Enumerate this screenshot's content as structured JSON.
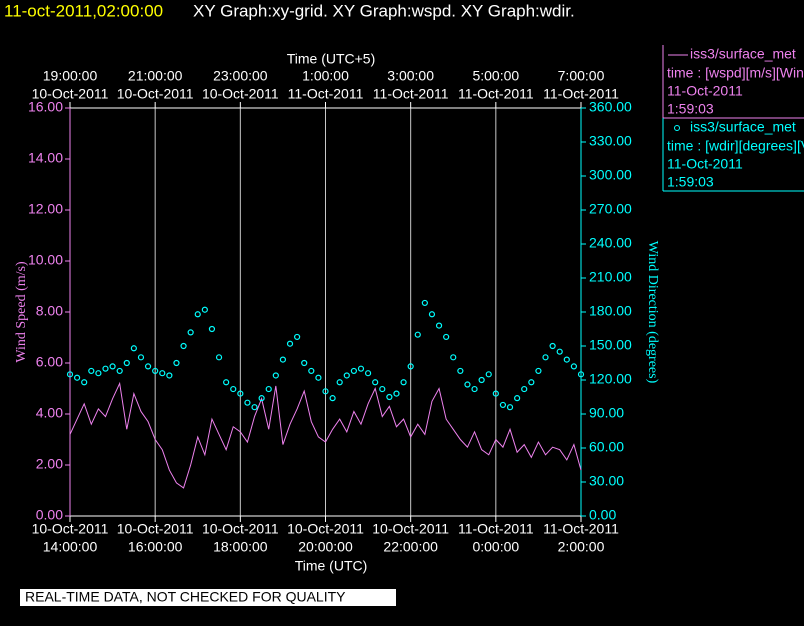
{
  "chart_data": {
    "type": "line",
    "title_time": "11-oct-2011,02:00:00",
    "title": "XY Graph:xy-grid.  XY Graph:wspd.  XY Graph:wdir.",
    "x2_label": "Time (UTC+5)",
    "x_label": "Time (UTC)",
    "y_label": "Wind Speed (m/s)",
    "y2_label": "Wind Direction (degrees)",
    "footer": "REAL-TIME DATA, NOT CHECKED FOR QUALITY",
    "grid": true,
    "xlim": [
      "2011-10-10 14:00",
      "2011-10-11 02:00"
    ],
    "xticks": [
      {
        "value": "2011-10-10 14:00",
        "date": "10-Oct-2011",
        "label": "14:00:00"
      },
      {
        "value": "2011-10-10 16:00",
        "date": "10-Oct-2011",
        "label": "16:00:00"
      },
      {
        "value": "2011-10-10 18:00",
        "date": "10-Oct-2011",
        "label": "18:00:00"
      },
      {
        "value": "2011-10-10 20:00",
        "date": "10-Oct-2011",
        "label": "20:00:00"
      },
      {
        "value": "2011-10-10 22:00",
        "date": "10-Oct-2011",
        "label": "22:00:00"
      },
      {
        "value": "2011-10-11 00:00",
        "date": "11-Oct-2011",
        "label": "0:00:00"
      },
      {
        "value": "2011-10-11 02:00",
        "date": "11-Oct-2011",
        "label": "2:00:00"
      }
    ],
    "x2ticks": [
      {
        "value": "2011-10-10 14:00",
        "date": "10-Oct-2011",
        "label": "19:00:00"
      },
      {
        "value": "2011-10-10 16:00",
        "date": "10-Oct-2011",
        "label": "21:00:00"
      },
      {
        "value": "2011-10-10 18:00",
        "date": "10-Oct-2011",
        "label": "23:00:00"
      },
      {
        "value": "2011-10-10 20:00",
        "date": "11-Oct-2011",
        "label": "1:00:00"
      },
      {
        "value": "2011-10-10 22:00",
        "date": "11-Oct-2011",
        "label": "3:00:00"
      },
      {
        "value": "2011-10-11 00:00",
        "date": "11-Oct-2011",
        "label": "5:00:00"
      },
      {
        "value": "2011-10-11 02:00",
        "date": "11-Oct-2011",
        "label": "7:00:00"
      }
    ],
    "ylim": [
      0,
      16
    ],
    "yticks": [
      {
        "value": 0,
        "label": "0.00"
      },
      {
        "value": 2,
        "label": "2.00"
      },
      {
        "value": 4,
        "label": "4.00"
      },
      {
        "value": 6,
        "label": "6.00"
      },
      {
        "value": 8,
        "label": "8.00"
      },
      {
        "value": 10,
        "label": "10.00"
      },
      {
        "value": 12,
        "label": "12.00"
      },
      {
        "value": 14,
        "label": "14.00"
      },
      {
        "value": 16,
        "label": "16.00"
      }
    ],
    "y2lim": [
      0,
      360
    ],
    "y2ticks": [
      {
        "value": 0,
        "label": "0.00"
      },
      {
        "value": 30,
        "label": "30.00"
      },
      {
        "value": 60,
        "label": "60.00"
      },
      {
        "value": 90,
        "label": "90.00"
      },
      {
        "value": 120,
        "label": "120.00"
      },
      {
        "value": 150,
        "label": "150.00"
      },
      {
        "value": 180,
        "label": "180.00"
      },
      {
        "value": 210,
        "label": "210.00"
      },
      {
        "value": 240,
        "label": "240.00"
      },
      {
        "value": 270,
        "label": "270.00"
      },
      {
        "value": 300,
        "label": "300.00"
      },
      {
        "value": 330,
        "label": "330.00"
      },
      {
        "value": 360,
        "label": "360.00"
      }
    ],
    "x": [
      "2011-10-10 14:00",
      "2011-10-10 14:10",
      "2011-10-10 14:20",
      "2011-10-10 14:30",
      "2011-10-10 14:40",
      "2011-10-10 14:50",
      "2011-10-10 15:00",
      "2011-10-10 15:10",
      "2011-10-10 15:20",
      "2011-10-10 15:30",
      "2011-10-10 15:40",
      "2011-10-10 15:50",
      "2011-10-10 16:00",
      "2011-10-10 16:10",
      "2011-10-10 16:20",
      "2011-10-10 16:30",
      "2011-10-10 16:40",
      "2011-10-10 16:50",
      "2011-10-10 17:00",
      "2011-10-10 17:10",
      "2011-10-10 17:20",
      "2011-10-10 17:30",
      "2011-10-10 17:40",
      "2011-10-10 17:50",
      "2011-10-10 18:00",
      "2011-10-10 18:10",
      "2011-10-10 18:20",
      "2011-10-10 18:30",
      "2011-10-10 18:40",
      "2011-10-10 18:50",
      "2011-10-10 19:00",
      "2011-10-10 19:10",
      "2011-10-10 19:20",
      "2011-10-10 19:30",
      "2011-10-10 19:40",
      "2011-10-10 19:50",
      "2011-10-10 20:00",
      "2011-10-10 20:10",
      "2011-10-10 20:20",
      "2011-10-10 20:30",
      "2011-10-10 20:40",
      "2011-10-10 20:50",
      "2011-10-10 21:00",
      "2011-10-10 21:10",
      "2011-10-10 21:20",
      "2011-10-10 21:30",
      "2011-10-10 21:40",
      "2011-10-10 21:50",
      "2011-10-10 22:00",
      "2011-10-10 22:10",
      "2011-10-10 22:20",
      "2011-10-10 22:30",
      "2011-10-10 22:40",
      "2011-10-10 22:50",
      "2011-10-10 23:00",
      "2011-10-10 23:10",
      "2011-10-10 23:20",
      "2011-10-10 23:30",
      "2011-10-10 23:40",
      "2011-10-10 23:50",
      "2011-10-11 00:00",
      "2011-10-11 00:10",
      "2011-10-11 00:20",
      "2011-10-11 00:30",
      "2011-10-11 00:40",
      "2011-10-11 00:50",
      "2011-10-11 01:00",
      "2011-10-11 01:10",
      "2011-10-11 01:20",
      "2011-10-11 01:30",
      "2011-10-11 01:40",
      "2011-10-11 01:50",
      "2011-10-11 02:00"
    ],
    "series": [
      {
        "name": "iss3/surface_met",
        "color": "#ee82ee",
        "marker": "line",
        "legend_lines": [
          "time : [wspd][m/s][Wind",
          "11-Oct-2011",
          "1:59:03"
        ],
        "values": [
          3.2,
          3.8,
          4.4,
          3.6,
          4.2,
          3.9,
          4.6,
          5.2,
          3.4,
          4.8,
          4.1,
          3.7,
          3.0,
          2.6,
          1.8,
          1.3,
          1.1,
          2.0,
          3.1,
          2.4,
          3.8,
          3.2,
          2.6,
          3.5,
          3.3,
          2.9,
          3.9,
          4.6,
          3.4,
          5.1,
          2.8,
          3.6,
          4.2,
          4.9,
          3.7,
          3.1,
          2.9,
          3.4,
          3.8,
          3.3,
          4.1,
          3.6,
          4.4,
          5.0,
          3.9,
          4.3,
          3.5,
          3.8,
          3.1,
          3.6,
          3.2,
          4.5,
          5.0,
          3.8,
          3.4,
          3.0,
          2.7,
          3.3,
          2.6,
          2.4,
          3.0,
          2.7,
          3.4,
          2.5,
          2.8,
          2.3,
          2.9,
          2.4,
          2.7,
          2.6,
          2.2,
          2.8,
          1.8
        ]
      },
      {
        "name": "iss3/surface_met",
        "color": "#00ffff",
        "marker": "circle",
        "axis": "y2",
        "legend_lines": [
          "time : [wdir][degrees][V",
          "11-Oct-2011",
          "1:59:03"
        ],
        "values": [
          125,
          122,
          118,
          128,
          126,
          130,
          132,
          128,
          135,
          148,
          140,
          132,
          128,
          126,
          124,
          135,
          150,
          162,
          178,
          182,
          165,
          140,
          118,
          112,
          108,
          100,
          96,
          104,
          112,
          124,
          138,
          152,
          158,
          135,
          128,
          122,
          110,
          104,
          118,
          124,
          128,
          130,
          126,
          118,
          112,
          105,
          108,
          118,
          132,
          160,
          188,
          178,
          168,
          158,
          140,
          128,
          116,
          112,
          120,
          125,
          108,
          98,
          96,
          104,
          112,
          118,
          128,
          140,
          150,
          145,
          138,
          132,
          125
        ]
      }
    ]
  }
}
